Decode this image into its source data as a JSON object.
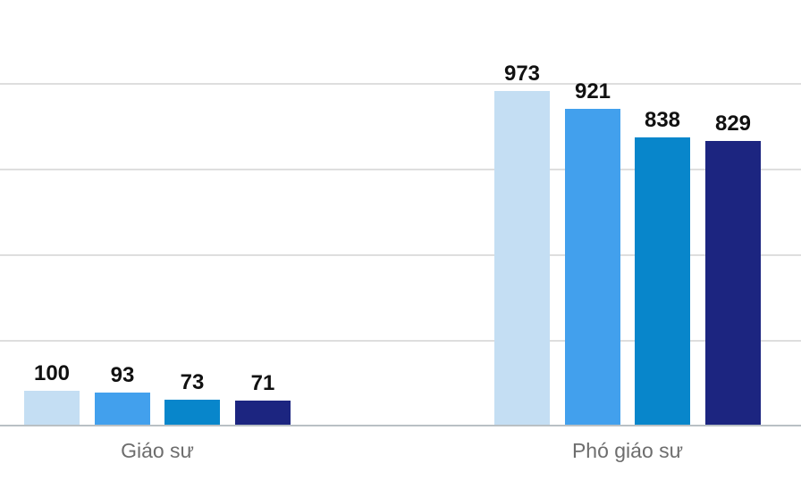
{
  "chart_data": {
    "type": "bar",
    "title": "",
    "categories": [
      "Giáo sư",
      "Phó giáo sư"
    ],
    "series": [
      {
        "color": "#c4def3",
        "values": [
          100,
          973
        ]
      },
      {
        "color": "#42a0ed",
        "values": [
          93,
          921
        ]
      },
      {
        "color": "#0886cb",
        "values": [
          73,
          838
        ]
      },
      {
        "color": "#1c2580",
        "values": [
          71,
          829
        ]
      }
    ],
    "ylim": [
      0,
      1000
    ],
    "gridline_values": [
      250,
      500,
      750,
      1000
    ],
    "grid": "horizontal",
    "legend": "none",
    "y_axis_tick_labels_visible": false,
    "value_labels_shown": true
  },
  "colors": {
    "background": "#ffffff",
    "gridline": "#dedede",
    "axis_line": "#b9c0c4",
    "value_label": "#111111",
    "category_label": "#6d6d6d"
  }
}
